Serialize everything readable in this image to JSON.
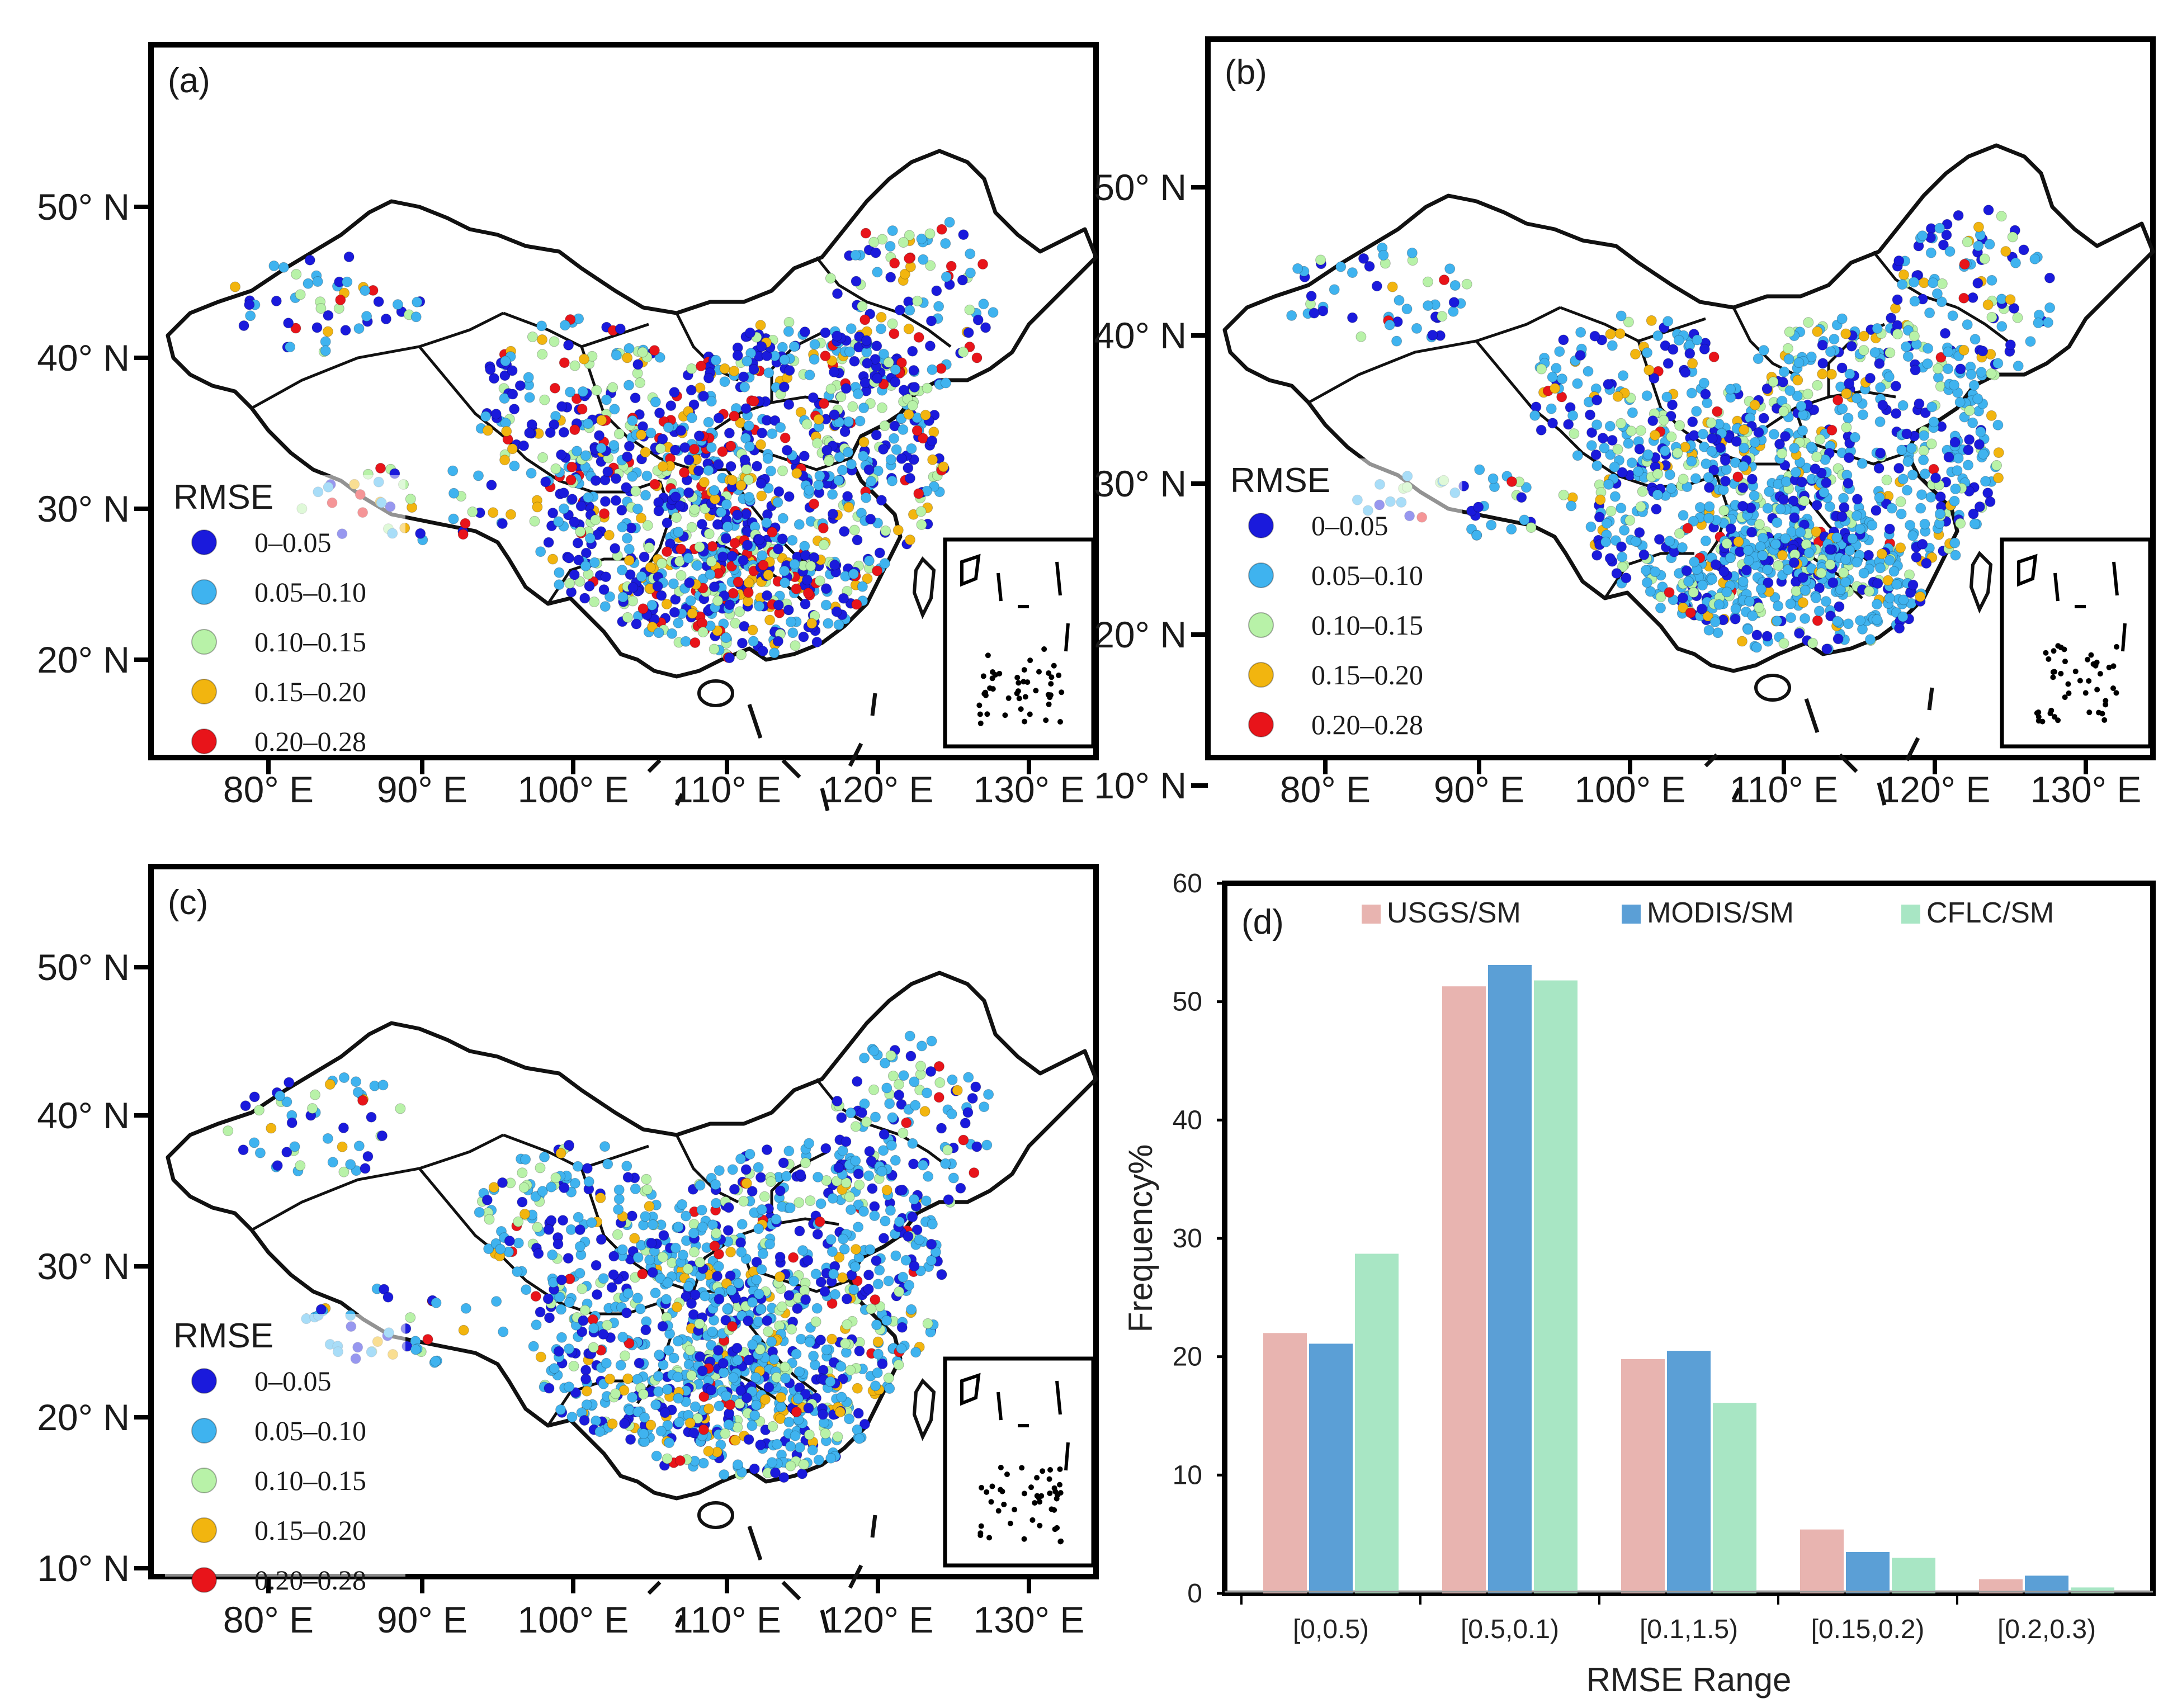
{
  "maps": [
    {
      "label": "(a)",
      "legend_title": "RMSE",
      "lat_ticks": [
        "50° N",
        "40° N",
        "30° N",
        "20° N"
      ],
      "lon_ticks": [
        "80° E",
        "90° E",
        "100° E",
        "110° E",
        "120° E",
        "130° E"
      ]
    },
    {
      "label": "(b)",
      "legend_title": "RMSE",
      "lat_ticks": [
        "50° N",
        "40° N",
        "30° N",
        "20° N",
        "10° N"
      ],
      "lon_ticks": [
        "80° E",
        "90° E",
        "100° E",
        "110° E",
        "120° E",
        "130° E"
      ]
    },
    {
      "label": "(c)",
      "legend_title": "RMSE",
      "lat_ticks": [
        "50° N",
        "40° N",
        "30° N",
        "20° N",
        "10° N"
      ],
      "lon_ticks": [
        "80° E",
        "90° E",
        "100° E",
        "110° E",
        "120° E",
        "130° E"
      ]
    }
  ],
  "rmse_classes": [
    {
      "label": "0–0.05",
      "color": "#1a1adc"
    },
    {
      "label": "0.05–0.10",
      "color": "#3fb3ef"
    },
    {
      "label": "0.10–0.15",
      "color": "#b8f2a8"
    },
    {
      "label": "0.15–0.20",
      "color": "#f2b50f"
    },
    {
      "label": "0.20–0.28",
      "color": "#e8141a"
    }
  ],
  "chart_data": {
    "type": "bar",
    "panel_label": "(d)",
    "title": "",
    "xlabel": "RMSE Range",
    "ylabel": "Frequency%",
    "ylim": [
      0,
      60
    ],
    "yticks": [
      0,
      10,
      20,
      30,
      40,
      50,
      60
    ],
    "categories": [
      "[0,0.5)",
      "[0.5,0.1)",
      "[0.1,1.5)",
      "[0.15,0.2)",
      "[0.2,0.3)"
    ],
    "series": [
      {
        "name": "USGS/SM",
        "color": "#e8b4b0",
        "values": [
          22.0,
          51.3,
          19.8,
          5.4,
          1.2
        ]
      },
      {
        "name": "MODIS/SM",
        "color": "#5b9fd6",
        "values": [
          21.1,
          53.1,
          20.5,
          3.5,
          1.5
        ]
      },
      {
        "name": "CFLC/SM",
        "color": "#a8e6c4",
        "values": [
          28.7,
          51.8,
          16.1,
          3.0,
          0.5
        ]
      }
    ],
    "legend": "top"
  }
}
